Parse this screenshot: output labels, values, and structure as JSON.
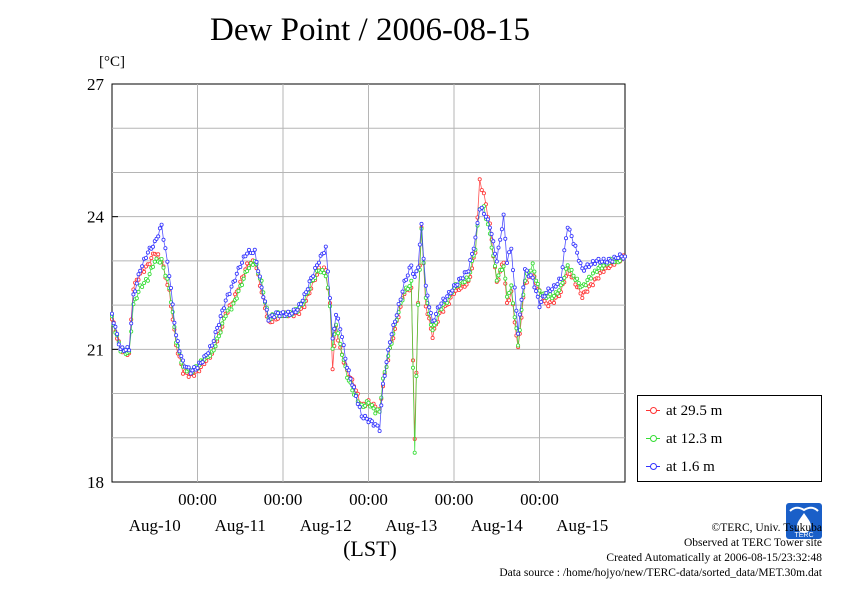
{
  "title": "Dew Point / 2006-08-15",
  "unit": "[°C]",
  "chart_data": {
    "type": "line",
    "title": "Dew Point / 2006-08-15",
    "ylabel": "[°C]",
    "xlabel": "(LST)",
    "ylim": [
      18,
      27
    ],
    "xlim_days": [
      9.0,
      15.0
    ],
    "y_ticks": [
      "18",
      "21",
      "24",
      "27"
    ],
    "x_time_ticks": [
      "00:00",
      "00:00",
      "00:00",
      "00:00",
      "00:00"
    ],
    "x_day_labels": [
      "Aug-10",
      "Aug-11",
      "Aug-12",
      "Aug-13",
      "Aug-14",
      "Aug-15"
    ],
    "grid": true,
    "legend_position": "right-bottom",
    "series": [
      {
        "name": "at 29.5 m",
        "color": "#ff3333",
        "points": [
          [
            9.0,
            21.7
          ],
          [
            9.1,
            21.0
          ],
          [
            9.2,
            20.9
          ],
          [
            9.25,
            22.4
          ],
          [
            9.33,
            22.7
          ],
          [
            9.42,
            22.9
          ],
          [
            9.5,
            23.2
          ],
          [
            9.58,
            23.0
          ],
          [
            9.67,
            22.3
          ],
          [
            9.75,
            21.1
          ],
          [
            9.83,
            20.5
          ],
          [
            9.92,
            20.4
          ],
          [
            10.0,
            20.5
          ],
          [
            10.08,
            20.7
          ],
          [
            10.17,
            20.9
          ],
          [
            10.25,
            21.3
          ],
          [
            10.33,
            21.8
          ],
          [
            10.42,
            22.1
          ],
          [
            10.5,
            22.5
          ],
          [
            10.58,
            22.9
          ],
          [
            10.67,
            23.0
          ],
          [
            10.75,
            22.3
          ],
          [
            10.83,
            21.6
          ],
          [
            10.92,
            21.7
          ],
          [
            11.0,
            21.8
          ],
          [
            11.08,
            21.8
          ],
          [
            11.17,
            21.8
          ],
          [
            11.25,
            22.0
          ],
          [
            11.33,
            22.4
          ],
          [
            11.42,
            22.8
          ],
          [
            11.5,
            22.8
          ],
          [
            11.55,
            22.0
          ],
          [
            11.58,
            20.6
          ],
          [
            11.62,
            21.5
          ],
          [
            11.67,
            21.0
          ],
          [
            11.75,
            20.5
          ],
          [
            11.83,
            20.2
          ],
          [
            11.92,
            19.7
          ],
          [
            12.0,
            19.8
          ],
          [
            12.08,
            19.7
          ],
          [
            12.13,
            19.6
          ],
          [
            12.17,
            20.2
          ],
          [
            12.25,
            21.0
          ],
          [
            12.33,
            21.6
          ],
          [
            12.42,
            22.3
          ],
          [
            12.5,
            22.4
          ],
          [
            12.54,
            19.0
          ],
          [
            12.58,
            22.0
          ],
          [
            12.62,
            23.8
          ],
          [
            12.67,
            22.0
          ],
          [
            12.75,
            21.3
          ],
          [
            12.83,
            21.8
          ],
          [
            12.92,
            22.0
          ],
          [
            13.0,
            22.3
          ],
          [
            13.08,
            22.4
          ],
          [
            13.17,
            22.5
          ],
          [
            13.25,
            23.2
          ],
          [
            13.3,
            24.8
          ],
          [
            13.35,
            24.5
          ],
          [
            13.42,
            23.8
          ],
          [
            13.5,
            22.5
          ],
          [
            13.58,
            23.0
          ],
          [
            13.62,
            22.0
          ],
          [
            13.67,
            22.3
          ],
          [
            13.75,
            21.0
          ],
          [
            13.83,
            22.5
          ],
          [
            13.92,
            22.7
          ],
          [
            14.0,
            22.3
          ],
          [
            14.08,
            22.0
          ],
          [
            14.17,
            22.1
          ],
          [
            14.25,
            22.3
          ],
          [
            14.33,
            22.8
          ],
          [
            14.42,
            22.5
          ],
          [
            14.5,
            22.2
          ],
          [
            14.58,
            22.4
          ],
          [
            14.67,
            22.6
          ],
          [
            14.75,
            22.8
          ],
          [
            14.83,
            22.9
          ],
          [
            14.92,
            23.0
          ],
          [
            15.0,
            23.1
          ]
        ]
      },
      {
        "name": "at 12.3 m",
        "color": "#33dd33",
        "points": [
          [
            9.0,
            21.7
          ],
          [
            9.1,
            21.0
          ],
          [
            9.2,
            20.9
          ],
          [
            9.25,
            22.0
          ],
          [
            9.33,
            22.4
          ],
          [
            9.42,
            22.6
          ],
          [
            9.5,
            23.0
          ],
          [
            9.58,
            23.0
          ],
          [
            9.67,
            22.4
          ],
          [
            9.75,
            21.2
          ],
          [
            9.83,
            20.6
          ],
          [
            9.92,
            20.5
          ],
          [
            10.0,
            20.6
          ],
          [
            10.08,
            20.8
          ],
          [
            10.17,
            20.9
          ],
          [
            10.25,
            21.3
          ],
          [
            10.33,
            21.8
          ],
          [
            10.42,
            22.0
          ],
          [
            10.5,
            22.4
          ],
          [
            10.58,
            22.8
          ],
          [
            10.67,
            23.0
          ],
          [
            10.75,
            22.5
          ],
          [
            10.83,
            21.7
          ],
          [
            10.92,
            21.8
          ],
          [
            11.0,
            21.8
          ],
          [
            11.08,
            21.8
          ],
          [
            11.17,
            21.9
          ],
          [
            11.25,
            22.1
          ],
          [
            11.33,
            22.5
          ],
          [
            11.42,
            22.8
          ],
          [
            11.5,
            22.7
          ],
          [
            11.55,
            22.0
          ],
          [
            11.58,
            21.0
          ],
          [
            11.62,
            21.6
          ],
          [
            11.67,
            21.1
          ],
          [
            11.75,
            20.4
          ],
          [
            11.83,
            20.0
          ],
          [
            11.92,
            19.7
          ],
          [
            12.0,
            19.8
          ],
          [
            12.08,
            19.6
          ],
          [
            12.13,
            19.6
          ],
          [
            12.17,
            20.3
          ],
          [
            12.25,
            21.0
          ],
          [
            12.33,
            21.7
          ],
          [
            12.42,
            22.3
          ],
          [
            12.5,
            22.5
          ],
          [
            12.54,
            18.7
          ],
          [
            12.58,
            22.0
          ],
          [
            12.62,
            23.7
          ],
          [
            12.67,
            22.2
          ],
          [
            12.75,
            21.4
          ],
          [
            12.83,
            21.9
          ],
          [
            12.92,
            22.1
          ],
          [
            13.0,
            22.4
          ],
          [
            13.08,
            22.5
          ],
          [
            13.17,
            22.6
          ],
          [
            13.25,
            23.3
          ],
          [
            13.3,
            24.2
          ],
          [
            13.35,
            24.2
          ],
          [
            13.42,
            23.6
          ],
          [
            13.5,
            22.6
          ],
          [
            13.58,
            22.9
          ],
          [
            13.62,
            22.2
          ],
          [
            13.67,
            22.4
          ],
          [
            13.75,
            21.1
          ],
          [
            13.83,
            22.6
          ],
          [
            13.92,
            22.9
          ],
          [
            14.0,
            22.3
          ],
          [
            14.08,
            22.2
          ],
          [
            14.17,
            22.2
          ],
          [
            14.25,
            22.4
          ],
          [
            14.33,
            22.9
          ],
          [
            14.42,
            22.6
          ],
          [
            14.5,
            22.4
          ],
          [
            14.58,
            22.6
          ],
          [
            14.67,
            22.8
          ],
          [
            14.75,
            22.9
          ],
          [
            14.83,
            23.0
          ],
          [
            14.92,
            23.0
          ],
          [
            15.0,
            23.1
          ]
        ]
      },
      {
        "name": "at 1.6 m",
        "color": "#3333ff",
        "points": [
          [
            9.0,
            21.8
          ],
          [
            9.1,
            21.0
          ],
          [
            9.2,
            21.0
          ],
          [
            9.25,
            22.2
          ],
          [
            9.33,
            22.8
          ],
          [
            9.42,
            23.2
          ],
          [
            9.5,
            23.4
          ],
          [
            9.58,
            23.8
          ],
          [
            9.67,
            22.7
          ],
          [
            9.75,
            21.3
          ],
          [
            9.83,
            20.7
          ],
          [
            9.92,
            20.5
          ],
          [
            10.0,
            20.6
          ],
          [
            10.08,
            20.8
          ],
          [
            10.17,
            21.1
          ],
          [
            10.25,
            21.6
          ],
          [
            10.33,
            22.1
          ],
          [
            10.42,
            22.5
          ],
          [
            10.5,
            22.9
          ],
          [
            10.58,
            23.2
          ],
          [
            10.67,
            23.2
          ],
          [
            10.75,
            22.4
          ],
          [
            10.83,
            21.7
          ],
          [
            10.92,
            21.8
          ],
          [
            11.0,
            21.8
          ],
          [
            11.08,
            21.8
          ],
          [
            11.17,
            21.9
          ],
          [
            11.25,
            22.2
          ],
          [
            11.33,
            22.6
          ],
          [
            11.42,
            23.0
          ],
          [
            11.5,
            23.3
          ],
          [
            11.55,
            22.2
          ],
          [
            11.58,
            21.2
          ],
          [
            11.62,
            21.8
          ],
          [
            11.67,
            21.5
          ],
          [
            11.75,
            20.6
          ],
          [
            11.83,
            20.1
          ],
          [
            11.92,
            19.5
          ],
          [
            12.0,
            19.4
          ],
          [
            12.08,
            19.3
          ],
          [
            12.13,
            19.2
          ],
          [
            12.17,
            20.2
          ],
          [
            12.25,
            21.2
          ],
          [
            12.33,
            21.8
          ],
          [
            12.42,
            22.5
          ],
          [
            12.5,
            22.9
          ],
          [
            12.54,
            22.6
          ],
          [
            12.58,
            22.9
          ],
          [
            12.62,
            23.8
          ],
          [
            12.67,
            22.4
          ],
          [
            12.75,
            21.6
          ],
          [
            12.83,
            22.0
          ],
          [
            12.92,
            22.2
          ],
          [
            13.0,
            22.4
          ],
          [
            13.08,
            22.6
          ],
          [
            13.17,
            22.8
          ],
          [
            13.25,
            23.5
          ],
          [
            13.3,
            24.2
          ],
          [
            13.35,
            24.1
          ],
          [
            13.42,
            23.8
          ],
          [
            13.5,
            23.0
          ],
          [
            13.58,
            24.0
          ],
          [
            13.62,
            23.0
          ],
          [
            13.67,
            23.3
          ],
          [
            13.75,
            21.4
          ],
          [
            13.83,
            22.8
          ],
          [
            13.92,
            22.6
          ],
          [
            14.0,
            22.0
          ],
          [
            14.08,
            22.3
          ],
          [
            14.17,
            22.4
          ],
          [
            14.25,
            22.6
          ],
          [
            14.33,
            23.8
          ],
          [
            14.42,
            23.3
          ],
          [
            14.5,
            22.8
          ],
          [
            14.58,
            22.9
          ],
          [
            14.67,
            23.0
          ],
          [
            14.75,
            23.0
          ],
          [
            14.83,
            23.0
          ],
          [
            14.92,
            23.1
          ],
          [
            15.0,
            23.1
          ]
        ]
      }
    ]
  },
  "legend": [
    {
      "label": "at 29.5 m",
      "color": "#ff3333"
    },
    {
      "label": "at 12.3 m",
      "color": "#33dd33"
    },
    {
      "label": "at 1.6 m",
      "color": "#3333ff"
    }
  ],
  "credits": {
    "line1": "©TERC, Univ. Tsukuba",
    "line2": "Observed at TERC Tower site",
    "line3": "Created Automatically at 2006-08-15/23:32:48",
    "line4": "Data source : /home/hojyo/new/TERC-data/sorted_data/MET.30m.dat"
  },
  "logo": {
    "icon": "terc-logo-icon",
    "text": "TERC",
    "color": "#1a5fc8"
  }
}
